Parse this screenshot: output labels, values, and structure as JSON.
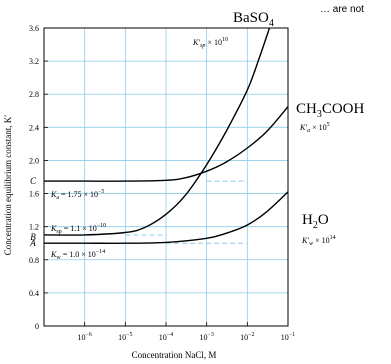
{
  "note": "… are not",
  "chart_data": {
    "type": "line",
    "x_scale": "log",
    "xlim": [
      1e-07,
      0.1
    ],
    "ylim": [
      0,
      3.6
    ],
    "grid": true,
    "xlabel": "Concentration NaCl, M",
    "ylabel": "Concentration equilibrium constant, K′",
    "x_ticks": [
      {
        "value": 1e-06,
        "base": "10",
        "exp": "−6"
      },
      {
        "value": 1e-05,
        "base": "10",
        "exp": "−5"
      },
      {
        "value": 0.0001,
        "base": "10",
        "exp": "−4"
      },
      {
        "value": 0.001,
        "base": "10",
        "exp": "−3"
      },
      {
        "value": 0.01,
        "base": "10",
        "exp": "−2"
      },
      {
        "value": 0.1,
        "base": "10",
        "exp": "−1"
      }
    ],
    "y_ticks": [
      {
        "value": 0,
        "label": "0"
      },
      {
        "value": 0.4,
        "label": "0.4"
      },
      {
        "value": 0.8,
        "label": "0.8"
      },
      {
        "value": 1.2,
        "label": "1.2"
      },
      {
        "value": 1.6,
        "label": "1.6"
      },
      {
        "value": 2.0,
        "label": "2.0"
      },
      {
        "value": 2.4,
        "label": "2.4"
      },
      {
        "value": 2.8,
        "label": "2.8"
      },
      {
        "value": 3.2,
        "label": "3.2"
      },
      {
        "value": 3.6,
        "label": "3.6"
      }
    ],
    "series": [
      {
        "name": "BaSO4",
        "name_parts": {
          "main": "BaSO",
          "sub": "4"
        },
        "curve_label": {
          "k": "K′",
          "sub": "sp",
          "times": " × 10",
          "exp": "10"
        },
        "point_letter": "B",
        "start_label": {
          "k": "K",
          "sub": "sp",
          "value": " = 1.1 × 10",
          "exp": "−10"
        },
        "x": [
          1e-07,
          1e-06,
          1e-05,
          3e-05,
          0.0001,
          0.0003,
          0.001,
          0.003,
          0.01,
          0.02,
          0.035
        ],
        "y": [
          1.1,
          1.1,
          1.13,
          1.19,
          1.35,
          1.58,
          1.95,
          2.35,
          2.85,
          3.25,
          3.6
        ]
      },
      {
        "name": "CH3COOH",
        "name_parts": {
          "main": "CH",
          "sub1": "3",
          "rest": "COOH"
        },
        "curve_label": {
          "k": "K′",
          "sub": "a",
          "times": " × 10",
          "exp": "5"
        },
        "point_letter": "C",
        "start_label": {
          "k": "K",
          "sub": "a",
          "value": " = 1.75 × 10",
          "exp": "−5"
        },
        "x": [
          1e-07,
          1e-06,
          1e-05,
          0.0001,
          0.0003,
          0.001,
          0.003,
          0.01,
          0.03,
          0.1
        ],
        "y": [
          1.75,
          1.75,
          1.75,
          1.76,
          1.79,
          1.87,
          1.98,
          2.15,
          2.35,
          2.65
        ]
      },
      {
        "name": "H2O",
        "name_parts": {
          "main": "H",
          "sub1": "2",
          "rest": "O"
        },
        "curve_label": {
          "k": "K′",
          "sub": "w",
          "times": " × 10",
          "exp": "14"
        },
        "point_letter": "A",
        "start_label": {
          "k": "K",
          "sub": "w",
          "value": " = 1.0 × 10",
          "exp": "−14"
        },
        "x": [
          1e-07,
          1e-06,
          1e-05,
          0.0001,
          0.001,
          0.003,
          0.01,
          0.03,
          0.1
        ],
        "y": [
          1.0,
          1.0,
          1.0,
          1.01,
          1.06,
          1.12,
          1.22,
          1.38,
          1.62
        ]
      }
    ],
    "reference_lines": [
      {
        "series": "CH3COOH",
        "y": 1.75,
        "x_from": 0.001,
        "x_to": 0.01
      },
      {
        "series": "BaSO4",
        "y": 1.1,
        "x_from": 1e-05,
        "x_to": 0.0001
      },
      {
        "series": "H2O",
        "y": 1.0,
        "x_from": 0.0001,
        "x_to": 0.01
      }
    ]
  }
}
